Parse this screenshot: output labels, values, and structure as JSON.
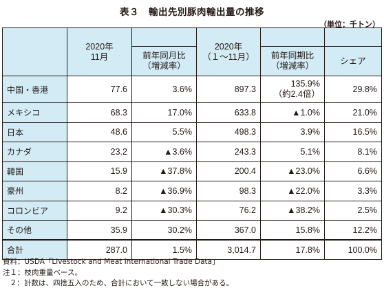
{
  "title": "表３　輸出先別豚肉輸出量の推移",
  "unit": "（単位：千トン）",
  "headers": {
    "col1": "2020年\n11月",
    "col2": "前年同月比\n（増減率）",
    "col3": "2020年\n（１～11月）",
    "col4": "前年同期比\n（増減率）",
    "col5": "シェア"
  },
  "rows": [
    {
      "name": "中国・香港",
      "m_val": "77.6",
      "m_yoy": "3.6%",
      "ytd_val": "897.3",
      "ytd_yoy": "135.9%\n（約2.4倍）",
      "share": "29.8%"
    },
    {
      "name": "メキシコ",
      "m_val": "68.3",
      "m_yoy": "17.0%",
      "ytd_val": "633.8",
      "ytd_yoy": "▲1.0%",
      "share": "21.0%"
    },
    {
      "name": "日本",
      "m_val": "48.6",
      "m_yoy": "5.5%",
      "ytd_val": "498.3",
      "ytd_yoy": "3.9%",
      "share": "16.5%"
    },
    {
      "name": "カナダ",
      "m_val": "23.2",
      "m_yoy": "▲3.6%",
      "ytd_val": "243.3",
      "ytd_yoy": "5.1%",
      "share": "8.1%"
    },
    {
      "name": "韓国",
      "m_val": "15.9",
      "m_yoy": "▲37.8%",
      "ytd_val": "200.4",
      "ytd_yoy": "▲23.0%",
      "share": "6.6%"
    },
    {
      "name": "豪州",
      "m_val": "8.2",
      "m_yoy": "▲36.9%",
      "ytd_val": "98.3",
      "ytd_yoy": "▲22.0%",
      "share": "3.3%"
    },
    {
      "name": "コロンビア",
      "m_val": "9.2",
      "m_yoy": "▲30.3%",
      "ytd_val": "76.2",
      "ytd_yoy": "▲38.2%",
      "share": "2.5%"
    },
    {
      "name": "その他",
      "m_val": "35.9",
      "m_yoy": "30.2%",
      "ytd_val": "367.0",
      "ytd_yoy": "15.8%",
      "share": "12.2%"
    },
    {
      "name": "合計",
      "m_val": "287.0",
      "m_yoy": "1.5%",
      "ytd_val": "3,014.7",
      "ytd_yoy": "17.8%",
      "share": "100.0%"
    }
  ],
  "notes": {
    "source": "資料：USDA「Livestock and Meat International Trade Data」",
    "note1": "注１：枝肉重量ベース。",
    "note2": "２：計数は、四捨五入のため、合計において一致しない場合がある。"
  },
  "colors": {
    "header_bg": "#d2ebf5",
    "text": "#231815"
  }
}
